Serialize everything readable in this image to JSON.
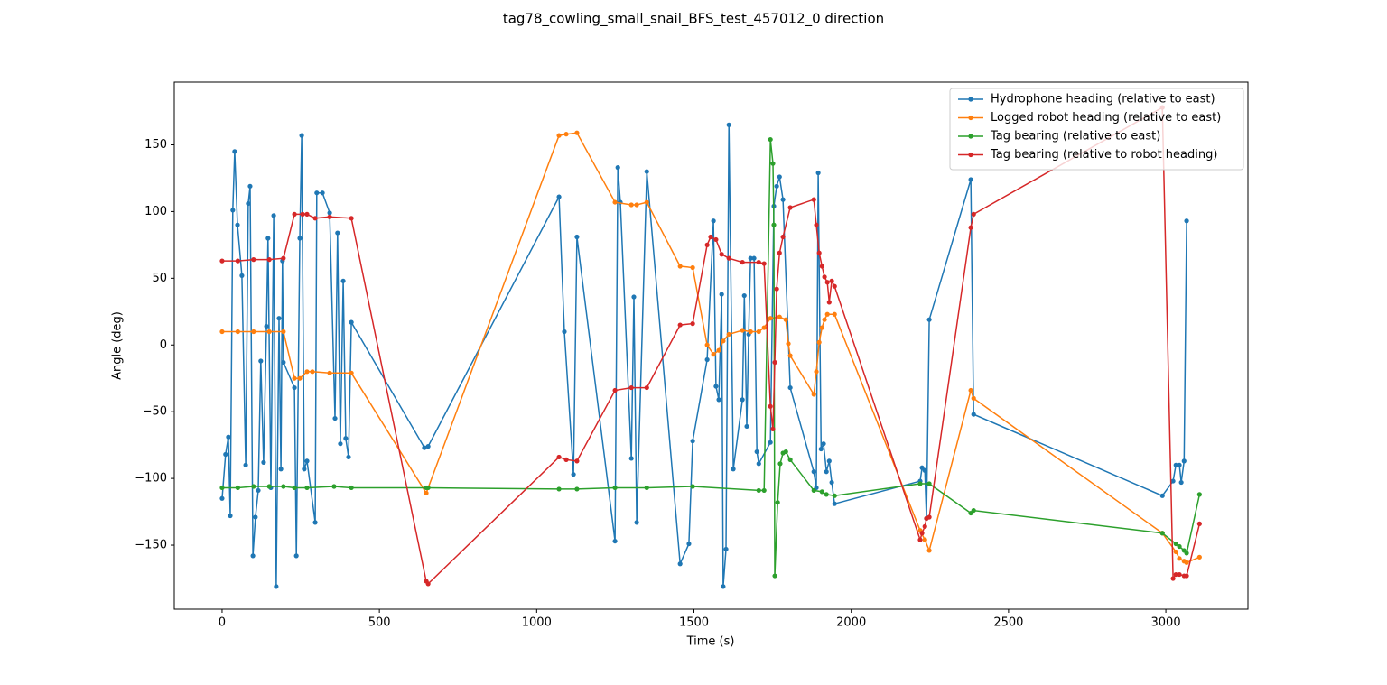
{
  "chart_data": {
    "type": "line",
    "title": "tag78_cowling_small_snail_BFS_test_457012_0 direction",
    "x_label": "Time (s)",
    "y_label": "Angle (deg)",
    "xlim": [
      -152,
      3261
    ],
    "ylim": [
      -198,
      197
    ],
    "xticks": [
      0,
      500,
      1000,
      1500,
      2000,
      2500,
      3000
    ],
    "yticks": [
      {
        "value": -150,
        "label": "−150"
      },
      {
        "value": -100,
        "label": "−100"
      },
      {
        "value": -50,
        "label": "−50"
      },
      0,
      50,
      100,
      150
    ],
    "legend": "upper right",
    "grid": false,
    "series": [
      {
        "name": "Hydrophone heading (relative to east)",
        "color": "#1f77b4",
        "x": [
          0,
          11,
          20,
          26,
          34,
          40,
          49,
          63,
          75,
          83,
          89,
          98,
          106,
          115,
          123,
          132,
          141,
          146,
          155,
          164,
          172,
          181,
          187,
          192,
          195,
          230,
          236,
          247,
          253,
          261,
          270,
          296,
          301,
          319,
          342,
          359,
          367,
          376,
          385,
          393,
          402,
          411,
          643,
          655,
          1071,
          1088,
          1117,
          1128,
          1249,
          1258,
          1266,
          1301,
          1309,
          1318,
          1350,
          1456,
          1484,
          1496,
          1542,
          1562,
          1570,
          1579,
          1588,
          1593,
          1602,
          1611,
          1625,
          1654,
          1660,
          1668,
          1674,
          1680,
          1691,
          1700,
          1706,
          1743,
          1754,
          1763,
          1772,
          1783,
          1806,
          1881,
          1889,
          1895,
          1904,
          1912,
          1921,
          1930,
          1938,
          1947,
          2219,
          2225,
          2234,
          2239,
          2248,
          2380,
          2389,
          2989,
          3023,
          3032,
          3043,
          3049,
          3058,
          3066
        ],
        "values": [
          -115,
          -82,
          -69,
          -128,
          101,
          145,
          90,
          52,
          -90,
          106,
          119,
          -158,
          -129,
          -109,
          -12,
          -88,
          14,
          80,
          -107,
          97,
          -181,
          20,
          -93,
          63,
          -13,
          -32,
          -158,
          80,
          157,
          -93,
          -87,
          -133,
          114,
          114,
          99,
          -55,
          84,
          -74,
          48,
          -70,
          -84,
          17,
          -77,
          -76,
          111,
          10,
          -97,
          81,
          -147,
          133,
          107,
          -85,
          36,
          -133,
          130,
          -164,
          -149,
          -72,
          -11,
          93,
          -31,
          -41,
          38,
          -181,
          -153,
          165,
          -93,
          -41,
          37,
          -61,
          8,
          65,
          65,
          -80,
          -89,
          -73,
          104,
          119,
          126,
          109,
          -32,
          -95,
          -107,
          129,
          -78,
          -74,
          -95,
          -87,
          -103,
          -119,
          -102,
          -92,
          -94,
          -130,
          19,
          124,
          -52,
          -113,
          -102,
          -90,
          -90,
          -103,
          -87,
          93
        ]
      },
      {
        "name": "Logged robot heading (relative to east)",
        "color": "#ff7f0e",
        "x": [
          0,
          50,
          100,
          150,
          195,
          230,
          247,
          270,
          287,
          342,
          411,
          649,
          1071,
          1094,
          1128,
          1249,
          1301,
          1318,
          1350,
          1456,
          1496,
          1542,
          1562,
          1579,
          1593,
          1611,
          1654,
          1680,
          1706,
          1723,
          1743,
          1772,
          1792,
          1800,
          1806,
          1881,
          1889,
          1898,
          1907,
          1915,
          1924,
          1947,
          2219,
          2234,
          2248,
          2380,
          2389,
          2989,
          3032,
          3043,
          3058,
          3066,
          3107
        ],
        "values": [
          10,
          10,
          10,
          10,
          10,
          -25,
          -25,
          -20,
          -20,
          -21,
          -21,
          -111,
          157,
          158,
          159,
          107,
          105,
          105,
          107,
          59,
          58,
          0,
          -7,
          -4,
          3,
          8,
          11,
          10,
          10,
          13,
          20,
          21,
          19,
          1,
          -8,
          -37,
          -20,
          2,
          13,
          19,
          23,
          23,
          -139,
          -146,
          -154,
          -34,
          -40,
          -141,
          -155,
          -160,
          -162,
          -163,
          -159
        ]
      },
      {
        "name": "Tag bearing (relative to east)",
        "color": "#2ca02c",
        "x": [
          0,
          50,
          100,
          150,
          195,
          230,
          270,
          356,
          411,
          649,
          655,
          1071,
          1128,
          1249,
          1350,
          1496,
          1706,
          1723,
          1743,
          1751,
          1754,
          1757,
          1766,
          1774,
          1783,
          1792,
          1806,
          1881,
          1907,
          1921,
          1947,
          2219,
          2248,
          2380,
          2389,
          2989,
          3032,
          3043,
          3058,
          3066,
          3107
        ],
        "values": [
          -107,
          -107,
          -106,
          -106,
          -106,
          -107,
          -107,
          -106,
          -107,
          -107,
          -107,
          -108,
          -108,
          -107,
          -107,
          -106,
          -109,
          -109,
          154,
          136,
          90,
          -173,
          -118,
          -89,
          -81,
          -80,
          -86,
          -109,
          -110,
          -112,
          -113,
          -104,
          -104,
          -126,
          -124,
          -141,
          -149,
          -151,
          -154,
          -156,
          -112
        ]
      },
      {
        "name": "Tag bearing (relative to robot heading)",
        "color": "#d62728",
        "x": [
          0,
          50,
          100,
          150,
          195,
          230,
          256,
          270,
          296,
          342,
          411,
          649,
          655,
          1071,
          1094,
          1128,
          1249,
          1301,
          1350,
          1456,
          1496,
          1542,
          1553,
          1570,
          1588,
          1611,
          1654,
          1706,
          1723,
          1743,
          1751,
          1757,
          1763,
          1772,
          1783,
          1806,
          1881,
          1889,
          1898,
          1907,
          1915,
          1924,
          1930,
          1938,
          1947,
          2219,
          2225,
          2234,
          2239,
          2248,
          2380,
          2389,
          2989,
          3023,
          3032,
          3043,
          3058,
          3066,
          3107
        ],
        "values": [
          63,
          63,
          64,
          64,
          65,
          98,
          98,
          98,
          95,
          96,
          95,
          -177,
          -179,
          -84,
          -86,
          -87,
          -34,
          -32,
          -32,
          15,
          16,
          75,
          81,
          79,
          68,
          65,
          62,
          62,
          61,
          -46,
          -63,
          -13,
          42,
          69,
          81,
          103,
          109,
          90,
          69,
          59,
          51,
          47,
          32,
          48,
          44,
          -146,
          -141,
          -136,
          -130,
          -129,
          88,
          98,
          178,
          -175,
          -172,
          -172,
          -173,
          -173,
          -134
        ]
      }
    ]
  }
}
